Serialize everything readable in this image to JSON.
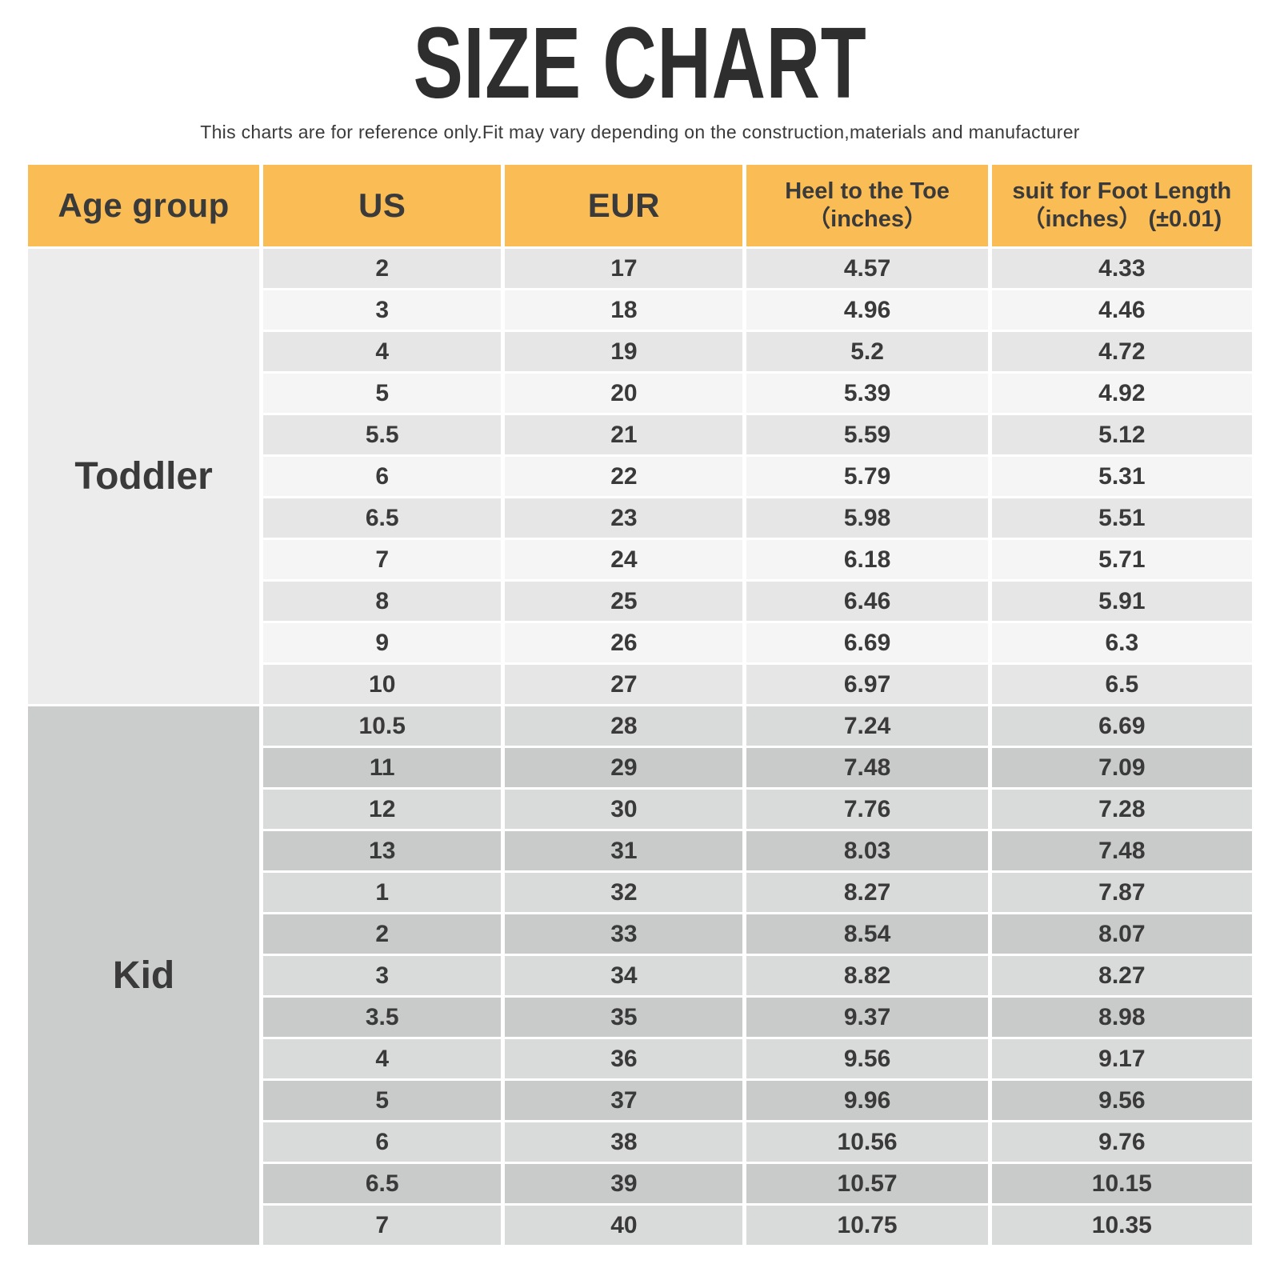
{
  "page": {
    "subtitle": "This charts are for reference only.Fit may vary depending on the construction,materials and manufacturer"
  },
  "colors": {
    "header_bg": "#FABD55",
    "title_text": "#2E2E2E",
    "body_text": "#3A3A3A",
    "toddler_group_bg": "#ECECEC",
    "toddler_row_dark": "#E6E6E6",
    "toddler_row_light": "#F5F5F5",
    "kid_group_bg": "#CACDCB",
    "kid_row_light": "#D9DBDA",
    "kid_row_dark": "#C8CBC9"
  },
  "chart_data": {
    "type": "table",
    "title": "SIZE CHART",
    "columns": [
      "Age group",
      "US",
      "EUR",
      "Heel to the Toe\n（inches）",
      "suit for Foot Length\n（inches） (±0.01)"
    ],
    "sections": [
      {
        "age_group": "Toddler",
        "rows": [
          [
            "2",
            "17",
            "4.57",
            "4.33"
          ],
          [
            "3",
            "18",
            "4.96",
            "4.46"
          ],
          [
            "4",
            "19",
            "5.2",
            "4.72"
          ],
          [
            "5",
            "20",
            "5.39",
            "4.92"
          ],
          [
            "5.5",
            "21",
            "5.59",
            "5.12"
          ],
          [
            "6",
            "22",
            "5.79",
            "5.31"
          ],
          [
            "6.5",
            "23",
            "5.98",
            "5.51"
          ],
          [
            "7",
            "24",
            "6.18",
            "5.71"
          ],
          [
            "8",
            "25",
            "6.46",
            "5.91"
          ],
          [
            "9",
            "26",
            "6.69",
            "6.3"
          ],
          [
            "10",
            "27",
            "6.97",
            "6.5"
          ]
        ]
      },
      {
        "age_group": "Kid",
        "rows": [
          [
            "10.5",
            "28",
            "7.24",
            "6.69"
          ],
          [
            "11",
            "29",
            "7.48",
            "7.09"
          ],
          [
            "12",
            "30",
            "7.76",
            "7.28"
          ],
          [
            "13",
            "31",
            "8.03",
            "7.48"
          ],
          [
            "1",
            "32",
            "8.27",
            "7.87"
          ],
          [
            "2",
            "33",
            "8.54",
            "8.07"
          ],
          [
            "3",
            "34",
            "8.82",
            "8.27"
          ],
          [
            "3.5",
            "35",
            "9.37",
            "8.98"
          ],
          [
            "4",
            "36",
            "9.56",
            "9.17"
          ],
          [
            "5",
            "37",
            "9.96",
            "9.56"
          ],
          [
            "6",
            "38",
            "10.56",
            "9.76"
          ],
          [
            "6.5",
            "39",
            "10.57",
            "10.15"
          ],
          [
            "7",
            "40",
            "10.75",
            "10.35"
          ]
        ]
      }
    ]
  }
}
